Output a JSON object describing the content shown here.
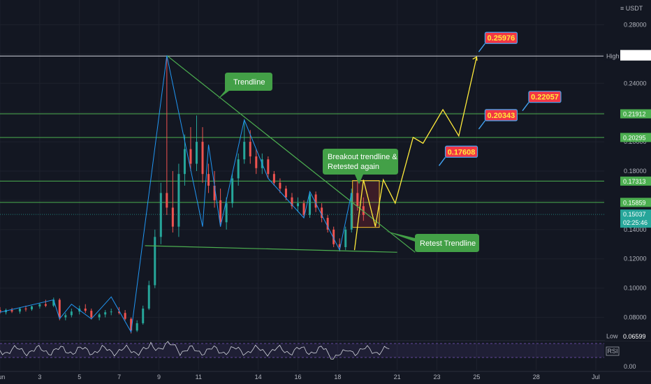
{
  "currency_label": "USDT",
  "price_axis_ticks": [
    "0.28000",
    "0.26000",
    "0.24000",
    "0.22000",
    "0.20000",
    "0.18000",
    "0.16000",
    "0.14000",
    "0.12000",
    "0.10000",
    "0.08000"
  ],
  "price_tick_values": [
    0.28,
    0.26,
    0.24,
    0.22,
    0.2,
    0.18,
    0.16,
    0.14,
    0.12,
    0.1,
    0.08
  ],
  "date_axis_ticks": [
    {
      "label": "Jun",
      "day": 1
    },
    {
      "label": "3",
      "day": 3
    },
    {
      "label": "5",
      "day": 5
    },
    {
      "label": "7",
      "day": 7
    },
    {
      "label": "9",
      "day": 9
    },
    {
      "label": "11",
      "day": 11
    },
    {
      "label": "14",
      "day": 14
    },
    {
      "label": "16",
      "day": 16
    },
    {
      "label": "18",
      "day": 18
    },
    {
      "label": "21",
      "day": 21
    },
    {
      "label": "23",
      "day": 23
    },
    {
      "label": "25",
      "day": 25
    },
    {
      "label": "28",
      "day": 28
    },
    {
      "label": "Jul",
      "day": 31
    }
  ],
  "rsi_axis_tick": "0.00",
  "rsi_label": "RSI",
  "levels": {
    "high_label": "High",
    "high_value": "0.25863",
    "low_label": "Low",
    "low_value": "0.06599",
    "top_value": "0.25964",
    "current_price": "0.15037",
    "countdown": "02:25:46",
    "horizontal_lines": [
      {
        "value": "0.21912",
        "price": 0.21912
      },
      {
        "value": "0.20295",
        "price": 0.20295
      },
      {
        "value": "0.17313",
        "price": 0.17313
      },
      {
        "value": "0.15859",
        "price": 0.15859
      }
    ]
  },
  "annotations": {
    "trendline": "Trendline",
    "breakout_line1": "Breakout trendline &",
    "breakout_line2": "Retested again",
    "retest": "Retest Trendline"
  },
  "targets": [
    {
      "label": "0.25976",
      "day": 25.0,
      "price": 0.2653
    },
    {
      "label": "0.22057",
      "day": 27.2,
      "price": 0.225
    },
    {
      "label": "0.20343",
      "day": 25.0,
      "price": 0.2125
    },
    {
      "label": "0.17608",
      "day": 23.0,
      "price": 0.1875
    }
  ],
  "colors": {
    "background": "#131722",
    "bull": "#26a69a",
    "bear": "#ef5350",
    "trend": "#4caf50",
    "zigzag": "#2196f3",
    "projection": "#ffeb3b",
    "annotation": "#43a047",
    "target_box": "#f23645"
  },
  "chart_data": {
    "type": "candlestick",
    "symbol_quote": "USDT",
    "x_axis": {
      "type": "date",
      "range_days": [
        1,
        31
      ]
    },
    "y_axis": {
      "range": [
        0.065,
        0.295
      ]
    },
    "candles": [
      {
        "day": 1.0,
        "open": 0.085,
        "high": 0.087,
        "low": 0.0825,
        "close": 0.0835
      },
      {
        "day": 1.3,
        "open": 0.0835,
        "high": 0.086,
        "low": 0.082,
        "close": 0.085
      },
      {
        "day": 1.6,
        "open": 0.085,
        "high": 0.0865,
        "low": 0.083,
        "close": 0.084
      },
      {
        "day": 2.0,
        "open": 0.084,
        "high": 0.087,
        "low": 0.0825,
        "close": 0.086
      },
      {
        "day": 2.3,
        "open": 0.086,
        "high": 0.088,
        "low": 0.084,
        "close": 0.0855
      },
      {
        "day": 2.6,
        "open": 0.0855,
        "high": 0.088,
        "low": 0.0845,
        "close": 0.0875
      },
      {
        "day": 3.0,
        "open": 0.0875,
        "high": 0.09,
        "low": 0.086,
        "close": 0.089
      },
      {
        "day": 3.3,
        "open": 0.089,
        "high": 0.092,
        "low": 0.087,
        "close": 0.088
      },
      {
        "day": 3.7,
        "open": 0.088,
        "high": 0.0935,
        "low": 0.087,
        "close": 0.092
      },
      {
        "day": 4.0,
        "open": 0.092,
        "high": 0.093,
        "low": 0.078,
        "close": 0.08
      },
      {
        "day": 4.3,
        "open": 0.08,
        "high": 0.083,
        "low": 0.078,
        "close": 0.0815
      },
      {
        "day": 4.6,
        "open": 0.0815,
        "high": 0.086,
        "low": 0.08,
        "close": 0.084
      },
      {
        "day": 5.0,
        "open": 0.084,
        "high": 0.088,
        "low": 0.082,
        "close": 0.086
      },
      {
        "day": 5.3,
        "open": 0.086,
        "high": 0.089,
        "low": 0.083,
        "close": 0.0845
      },
      {
        "day": 5.6,
        "open": 0.0845,
        "high": 0.086,
        "low": 0.0785,
        "close": 0.08
      },
      {
        "day": 6.0,
        "open": 0.08,
        "high": 0.083,
        "low": 0.078,
        "close": 0.082
      },
      {
        "day": 6.3,
        "open": 0.082,
        "high": 0.085,
        "low": 0.08,
        "close": 0.0835
      },
      {
        "day": 6.6,
        "open": 0.0835,
        "high": 0.086,
        "low": 0.0815,
        "close": 0.084
      },
      {
        "day": 7.0,
        "open": 0.084,
        "high": 0.087,
        "low": 0.082,
        "close": 0.083
      },
      {
        "day": 7.3,
        "open": 0.083,
        "high": 0.085,
        "low": 0.078,
        "close": 0.079
      },
      {
        "day": 7.6,
        "open": 0.079,
        "high": 0.08,
        "low": 0.069,
        "close": 0.071
      },
      {
        "day": 7.9,
        "open": 0.071,
        "high": 0.078,
        "low": 0.07,
        "close": 0.076
      },
      {
        "day": 8.2,
        "open": 0.076,
        "high": 0.088,
        "low": 0.075,
        "close": 0.086
      },
      {
        "day": 8.5,
        "open": 0.086,
        "high": 0.105,
        "low": 0.085,
        "close": 0.102
      },
      {
        "day": 8.8,
        "open": 0.102,
        "high": 0.14,
        "low": 0.1,
        "close": 0.135
      },
      {
        "day": 9.1,
        "open": 0.135,
        "high": 0.172,
        "low": 0.13,
        "close": 0.165
      },
      {
        "day": 9.4,
        "open": 0.165,
        "high": 0.259,
        "low": 0.15,
        "close": 0.155
      },
      {
        "day": 9.7,
        "open": 0.155,
        "high": 0.18,
        "low": 0.138,
        "close": 0.142
      },
      {
        "day": 10.0,
        "open": 0.142,
        "high": 0.185,
        "low": 0.135,
        "close": 0.178
      },
      {
        "day": 10.3,
        "open": 0.178,
        "high": 0.205,
        "low": 0.17,
        "close": 0.195
      },
      {
        "day": 10.6,
        "open": 0.195,
        "high": 0.21,
        "low": 0.18,
        "close": 0.185
      },
      {
        "day": 10.9,
        "open": 0.185,
        "high": 0.218,
        "low": 0.18,
        "close": 0.2
      },
      {
        "day": 11.2,
        "open": 0.2,
        "high": 0.21,
        "low": 0.172,
        "close": 0.178
      },
      {
        "day": 11.5,
        "open": 0.178,
        "high": 0.185,
        "low": 0.165,
        "close": 0.17
      },
      {
        "day": 11.8,
        "open": 0.17,
        "high": 0.18,
        "low": 0.155,
        "close": 0.16
      },
      {
        "day": 12.1,
        "open": 0.16,
        "high": 0.168,
        "low": 0.142,
        "close": 0.145
      },
      {
        "day": 12.4,
        "open": 0.145,
        "high": 0.162,
        "low": 0.14,
        "close": 0.158
      },
      {
        "day": 12.7,
        "open": 0.158,
        "high": 0.178,
        "low": 0.155,
        "close": 0.175
      },
      {
        "day": 13.0,
        "open": 0.175,
        "high": 0.192,
        "low": 0.17,
        "close": 0.188
      },
      {
        "day": 13.3,
        "open": 0.188,
        "high": 0.215,
        "low": 0.185,
        "close": 0.2
      },
      {
        "day": 13.6,
        "open": 0.2,
        "high": 0.208,
        "low": 0.185,
        "close": 0.19
      },
      {
        "day": 13.9,
        "open": 0.19,
        "high": 0.195,
        "low": 0.178,
        "close": 0.182
      },
      {
        "day": 14.2,
        "open": 0.182,
        "high": 0.192,
        "low": 0.178,
        "close": 0.188
      },
      {
        "day": 14.5,
        "open": 0.188,
        "high": 0.19,
        "low": 0.175,
        "close": 0.178
      },
      {
        "day": 14.8,
        "open": 0.178,
        "high": 0.18,
        "low": 0.17,
        "close": 0.172
      },
      {
        "day": 15.1,
        "open": 0.172,
        "high": 0.175,
        "low": 0.165,
        "close": 0.168
      },
      {
        "day": 15.4,
        "open": 0.168,
        "high": 0.17,
        "low": 0.16,
        "close": 0.162
      },
      {
        "day": 15.7,
        "open": 0.162,
        "high": 0.165,
        "low": 0.154,
        "close": 0.156
      },
      {
        "day": 16.0,
        "open": 0.156,
        "high": 0.162,
        "low": 0.152,
        "close": 0.158
      },
      {
        "day": 16.3,
        "open": 0.158,
        "high": 0.16,
        "low": 0.148,
        "close": 0.15
      },
      {
        "day": 16.6,
        "open": 0.15,
        "high": 0.166,
        "low": 0.148,
        "close": 0.164
      },
      {
        "day": 16.9,
        "open": 0.164,
        "high": 0.166,
        "low": 0.152,
        "close": 0.155
      },
      {
        "day": 17.2,
        "open": 0.155,
        "high": 0.158,
        "low": 0.145,
        "close": 0.148
      },
      {
        "day": 17.5,
        "open": 0.148,
        "high": 0.15,
        "low": 0.138,
        "close": 0.14
      },
      {
        "day": 17.8,
        "open": 0.14,
        "high": 0.142,
        "low": 0.128,
        "close": 0.13
      },
      {
        "day": 18.1,
        "open": 0.13,
        "high": 0.134,
        "low": 0.125,
        "close": 0.128
      },
      {
        "day": 18.4,
        "open": 0.128,
        "high": 0.142,
        "low": 0.126,
        "close": 0.14
      },
      {
        "day": 18.7,
        "open": 0.14,
        "high": 0.168,
        "low": 0.138,
        "close": 0.165
      },
      {
        "day": 19.0,
        "open": 0.165,
        "high": 0.173,
        "low": 0.153,
        "close": 0.156
      },
      {
        "day": 19.3,
        "open": 0.156,
        "high": 0.162,
        "low": 0.146,
        "close": 0.15
      }
    ]
  }
}
